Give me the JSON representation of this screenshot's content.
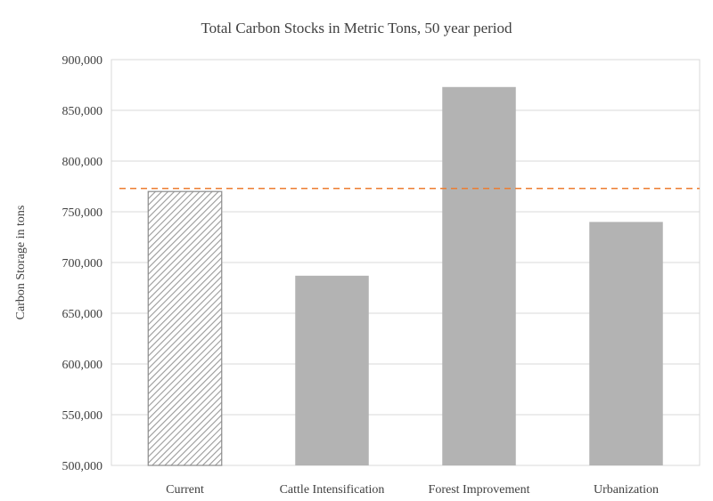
{
  "chart_data": {
    "type": "bar",
    "title": "Total Carbon Stocks in Metric Tons, 50 year period",
    "xlabel": "",
    "ylabel": "Carbon Storage in tons",
    "categories": [
      "Current",
      "Cattle Intensification",
      "Forest Improvement",
      "Urbanization"
    ],
    "values": [
      770000,
      687000,
      873000,
      740000
    ],
    "ylim": [
      500000,
      900000
    ],
    "yticks": [
      "500,000",
      "550,000",
      "600,000",
      "650,000",
      "700,000",
      "750,000",
      "800,000",
      "850,000",
      "900,000"
    ],
    "reference_line": {
      "value": 773000,
      "style": "dashed",
      "color": "#ed7d31"
    },
    "bar_color": "#b3b3b3",
    "highlight_bar": {
      "category": "Current",
      "pattern": "diagonal-hatch"
    },
    "grid": true,
    "legend": "none"
  }
}
